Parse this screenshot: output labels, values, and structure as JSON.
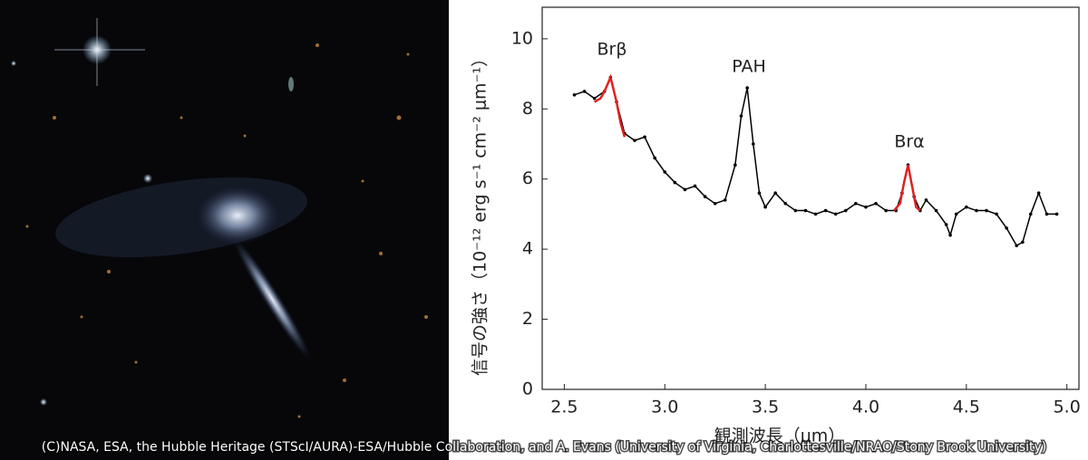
{
  "chart_data": {
    "type": "line",
    "xlabel": "観測波長（μm）",
    "ylabel": "信号の強さ（10⁻¹² erg s⁻¹ cm⁻² μm⁻¹）",
    "annotations": [
      "Brβ",
      "PAH",
      "Brα"
    ],
    "xlim": [
      2.39,
      5.06
    ],
    "ylim": [
      0,
      10.9
    ],
    "xticks": [
      2.5,
      {
        "value": 3,
        "label": "3.0"
      },
      3.5,
      {
        "value": 4,
        "label": "4.0"
      },
      4.5,
      {
        "value": 5,
        "label": "5.0"
      }
    ],
    "yticks": [
      0,
      2,
      4,
      6,
      8,
      10
    ],
    "series": [
      {
        "color": "#000000",
        "markers": true,
        "x": [
          2.55,
          2.6,
          2.65,
          2.7,
          2.73,
          2.76,
          2.8,
          2.85,
          2.9,
          2.95,
          3.0,
          3.05,
          3.1,
          3.15,
          3.2,
          3.25,
          3.3,
          3.35,
          3.38,
          3.41,
          3.44,
          3.47,
          3.5,
          3.55,
          3.6,
          3.65,
          3.7,
          3.75,
          3.8,
          3.85,
          3.9,
          3.95,
          4.0,
          4.05,
          4.1,
          4.15,
          4.18,
          4.21,
          4.24,
          4.27,
          4.3,
          4.35,
          4.4,
          4.42,
          4.45,
          4.5,
          4.55,
          4.6,
          4.65,
          4.7,
          4.75,
          4.78,
          4.82,
          4.86,
          4.9,
          4.95
        ],
        "values": [
          8.4,
          8.5,
          8.3,
          8.5,
          8.9,
          8.2,
          7.3,
          7.1,
          7.2,
          6.6,
          6.2,
          5.9,
          5.7,
          5.8,
          5.5,
          5.3,
          5.4,
          6.4,
          7.8,
          8.6,
          7.0,
          5.6,
          5.2,
          5.6,
          5.3,
          5.1,
          5.1,
          5.0,
          5.1,
          5.0,
          5.1,
          5.3,
          5.2,
          5.3,
          5.1,
          5.1,
          5.6,
          6.4,
          5.5,
          5.1,
          5.4,
          5.1,
          4.7,
          4.4,
          5.0,
          5.2,
          5.1,
          5.1,
          5.0,
          4.6,
          4.1,
          4.2,
          5.0,
          5.6,
          5.0,
          5.0
        ]
      },
      {
        "color": "#e02020",
        "markers": false,
        "x": [
          2.65,
          2.68,
          2.7,
          2.73,
          2.76,
          2.78,
          2.8
        ],
        "values": [
          8.2,
          8.3,
          8.5,
          8.9,
          8.2,
          7.6,
          7.2
        ]
      },
      {
        "color": "#e02020",
        "markers": false,
        "x": [
          4.14,
          4.17,
          4.19,
          4.21,
          4.23,
          4.25,
          4.27
        ],
        "values": [
          5.1,
          5.3,
          5.9,
          6.4,
          5.8,
          5.2,
          5.1
        ]
      }
    ]
  },
  "credit": "(C)NASA, ESA, the Hubble Heritage (STScI/AURA)-ESA/Hubble Collaboration, and A. Evans (University of Virginia, Charlottesville/NRAO/Stony Brook University)"
}
